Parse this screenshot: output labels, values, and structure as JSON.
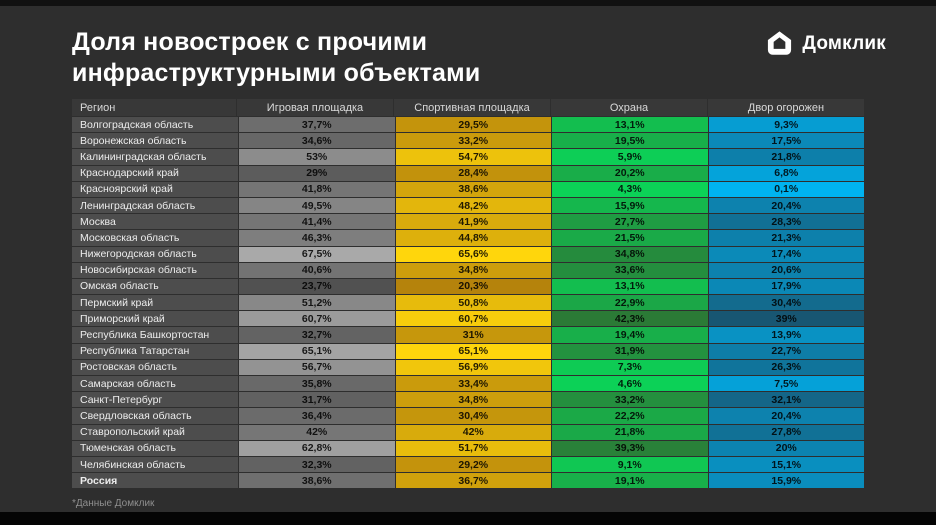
{
  "slide": {
    "title": "Доля новостроек с прочими\nинфраструктурными объектами",
    "logo_text": "Домклик",
    "footnote": "*Данные Домклик",
    "colors": {
      "background": "#2e2e2e",
      "header_bg": "#383838",
      "region_bg": "#4d4d4d"
    }
  },
  "chart_data": {
    "type": "heatmap",
    "title": "Доля новостроек с прочими инфраструктурными объектами",
    "source": "*Данные Домклик",
    "columns": [
      "Регион",
      "Игровая площадка",
      "Спортивная площадка",
      "Охрана",
      "Двор огорожен"
    ],
    "scales": [
      {
        "column": "Игровая площадка",
        "min": 23.7,
        "max": 67.5,
        "color_at_min": "#515151",
        "color_at_max": "#a9a9a9"
      },
      {
        "column": "Спортивная площадка",
        "min": 20.3,
        "max": 65.6,
        "color_at_min": "#b5830c",
        "color_at_max": "#ffd60c"
      },
      {
        "column": "Охрана",
        "min": 4.3,
        "max": 42.3,
        "color_at_min": "#0cd257",
        "color_at_max": "#2b7a36"
      },
      {
        "column": "Двор огорожен",
        "min": 0.1,
        "max": 39.0,
        "color_at_min": "#00b3f0",
        "color_at_max": "#185672"
      }
    ],
    "rows": [
      {
        "region": "Волгоградская область",
        "values": [
          "37,7%",
          "29,5%",
          "13,1%",
          "9,3%"
        ]
      },
      {
        "region": "Воронежская область",
        "values": [
          "34,6%",
          "33,2%",
          "19,5%",
          "17,5%"
        ]
      },
      {
        "region": "Калининградская область",
        "values": [
          "53%",
          "54,7%",
          "5,9%",
          "21,8%"
        ]
      },
      {
        "region": "Краснодарский край",
        "values": [
          "29%",
          "28,4%",
          "20,2%",
          "6,8%"
        ]
      },
      {
        "region": "Красноярский край",
        "values": [
          "41,8%",
          "38,6%",
          "4,3%",
          "0,1%"
        ]
      },
      {
        "region": "Ленинградская область",
        "values": [
          "49,5%",
          "48,2%",
          "15,9%",
          "20,4%"
        ]
      },
      {
        "region": "Москва",
        "values": [
          "41,4%",
          "41,9%",
          "27,7%",
          "28,3%"
        ]
      },
      {
        "region": "Московская область",
        "values": [
          "46,3%",
          "44,8%",
          "21,5%",
          "21,3%"
        ]
      },
      {
        "region": "Нижегородская область",
        "values": [
          "67,5%",
          "65,6%",
          "34,8%",
          "17,4%"
        ]
      },
      {
        "region": "Новосибирская область",
        "values": [
          "40,6%",
          "34,8%",
          "33,6%",
          "20,6%"
        ]
      },
      {
        "region": "Омская область",
        "values": [
          "23,7%",
          "20,3%",
          "13,1%",
          "17,9%"
        ]
      },
      {
        "region": "Пермский край",
        "values": [
          "51,2%",
          "50,8%",
          "22,9%",
          "30,4%"
        ]
      },
      {
        "region": "Приморский край",
        "values": [
          "60,7%",
          "60,7%",
          "42,3%",
          "39%"
        ]
      },
      {
        "region": "Республика Башкортостан",
        "values": [
          "32,7%",
          "31%",
          "19,4%",
          "13,9%"
        ]
      },
      {
        "region": "Республика Татарстан",
        "values": [
          "65,1%",
          "65,1%",
          "31,9%",
          "22,7%"
        ]
      },
      {
        "region": "Ростовская область",
        "values": [
          "56,7%",
          "56,9%",
          "7,3%",
          "26,3%"
        ]
      },
      {
        "region": "Самарская область",
        "values": [
          "35,8%",
          "33,4%",
          "4,6%",
          "7,5%"
        ]
      },
      {
        "region": "Санкт-Петербург",
        "values": [
          "31,7%",
          "34,8%",
          "33,2%",
          "32,1%"
        ]
      },
      {
        "region": "Свердловская область",
        "values": [
          "36,4%",
          "30,4%",
          "22,2%",
          "20,4%"
        ]
      },
      {
        "region": "Ставропольский край",
        "values": [
          "42%",
          "42%",
          "21,8%",
          "27,8%"
        ]
      },
      {
        "region": "Тюменская область",
        "values": [
          "62,8%",
          "51,7%",
          "39,3%",
          "20%"
        ]
      },
      {
        "region": "Челябинская область",
        "values": [
          "32,3%",
          "29,2%",
          "9,1%",
          "15,1%"
        ]
      },
      {
        "region": "Россия",
        "values": [
          "38,6%",
          "36,7%",
          "19,1%",
          "15,9%"
        ],
        "bold": true
      }
    ]
  }
}
